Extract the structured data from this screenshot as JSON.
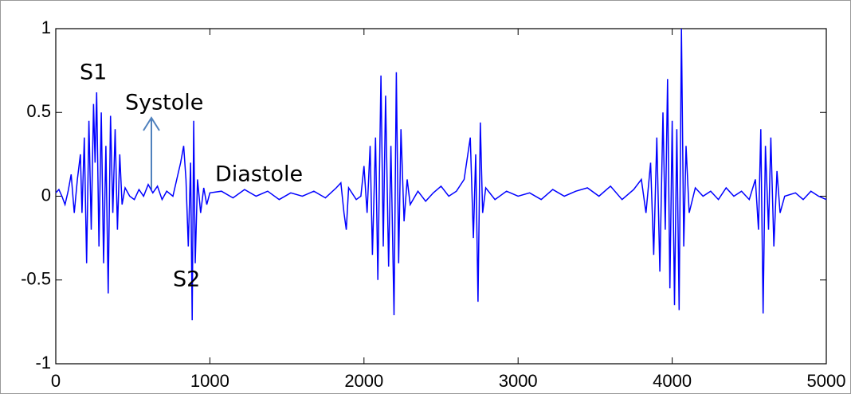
{
  "chart_data": {
    "type": "line",
    "annotations": [
      "S1",
      "Systole",
      "Diastole",
      "S2"
    ],
    "color": "#0000ff",
    "x": [
      0,
      20,
      40,
      60,
      80,
      100,
      120,
      140,
      160,
      170,
      185,
      200,
      215,
      230,
      245,
      255,
      265,
      280,
      295,
      310,
      325,
      340,
      355,
      370,
      385,
      400,
      415,
      430,
      450,
      480,
      510,
      540,
      570,
      600,
      630,
      660,
      690,
      720,
      760,
      790,
      810,
      830,
      845,
      860,
      875,
      885,
      895,
      905,
      920,
      940,
      960,
      980,
      1000,
      1075,
      1150,
      1225,
      1300,
      1375,
      1450,
      1525,
      1600,
      1675,
      1750,
      1820,
      1850,
      1870,
      1885,
      1900,
      1950,
      1980,
      2000,
      2020,
      2040,
      2055,
      2075,
      2090,
      2110,
      2125,
      2140,
      2160,
      2175,
      2195,
      2210,
      2225,
      2240,
      2260,
      2280,
      2300,
      2350,
      2400,
      2450,
      2500,
      2550,
      2600,
      2650,
      2690,
      2710,
      2725,
      2740,
      2755,
      2770,
      2790,
      2850,
      2925,
      3000,
      3075,
      3150,
      3225,
      3300,
      3375,
      3450,
      3525,
      3600,
      3675,
      3750,
      3800,
      3830,
      3860,
      3880,
      3900,
      3920,
      3940,
      3955,
      3970,
      3985,
      4000,
      4015,
      4030,
      4045,
      4060,
      4075,
      4090,
      4110,
      4150,
      4200,
      4250,
      4300,
      4350,
      4400,
      4450,
      4500,
      4540,
      4560,
      4575,
      4590,
      4605,
      4625,
      4640,
      4660,
      4680,
      4700,
      4730,
      4800,
      4850,
      4900,
      4950,
      5000
    ],
    "values": [
      0.02,
      0.04,
      0.0,
      -0.05,
      0.03,
      0.13,
      -0.1,
      0.1,
      0.25,
      -0.1,
      0.35,
      -0.4,
      0.45,
      -0.2,
      0.55,
      0.2,
      0.62,
      -0.3,
      0.5,
      -0.4,
      0.3,
      -0.58,
      0.48,
      -0.1,
      0.4,
      -0.2,
      0.25,
      -0.05,
      0.05,
      0.0,
      -0.02,
      0.04,
      0.0,
      0.07,
      0.02,
      0.06,
      -0.02,
      0.03,
      0.0,
      0.12,
      0.2,
      0.3,
      0.1,
      -0.3,
      0.2,
      -0.74,
      0.45,
      -0.4,
      0.1,
      -0.1,
      0.05,
      -0.05,
      0.02,
      0.03,
      -0.01,
      0.04,
      0.0,
      0.03,
      -0.02,
      0.02,
      0.0,
      0.03,
      -0.01,
      0.05,
      0.08,
      -0.1,
      -0.2,
      0.05,
      -0.02,
      0.0,
      0.18,
      -0.1,
      0.3,
      -0.35,
      0.35,
      -0.5,
      0.72,
      -0.3,
      0.6,
      -0.42,
      0.3,
      -0.71,
      0.74,
      -0.4,
      0.4,
      -0.15,
      0.1,
      -0.05,
      0.03,
      -0.03,
      0.02,
      0.06,
      0.0,
      0.03,
      0.1,
      0.35,
      -0.25,
      0.25,
      -0.63,
      0.44,
      -0.1,
      0.05,
      -0.02,
      0.03,
      0.0,
      0.02,
      -0.02,
      0.04,
      0.0,
      0.03,
      0.05,
      0.0,
      0.06,
      -0.02,
      0.04,
      0.1,
      -0.1,
      0.2,
      -0.35,
      0.35,
      -0.45,
      0.5,
      -0.2,
      0.7,
      -0.55,
      0.45,
      -0.65,
      0.4,
      -0.68,
      1.0,
      -0.3,
      0.3,
      -0.1,
      0.05,
      0.0,
      0.03,
      -0.02,
      0.05,
      0.0,
      0.03,
      -0.02,
      0.1,
      -0.2,
      0.4,
      -0.7,
      0.3,
      -0.2,
      0.35,
      -0.3,
      0.15,
      -0.1,
      0.0,
      0.02,
      -0.02,
      0.03,
      0.0,
      -0.02
    ],
    "xlim": [
      0,
      5000
    ],
    "xticks": [
      0,
      1000,
      2000,
      3000,
      4000,
      5000
    ],
    "ylim": [
      -1,
      1
    ],
    "yticks": [
      -1,
      -0.5,
      0,
      0.5,
      1
    ]
  }
}
